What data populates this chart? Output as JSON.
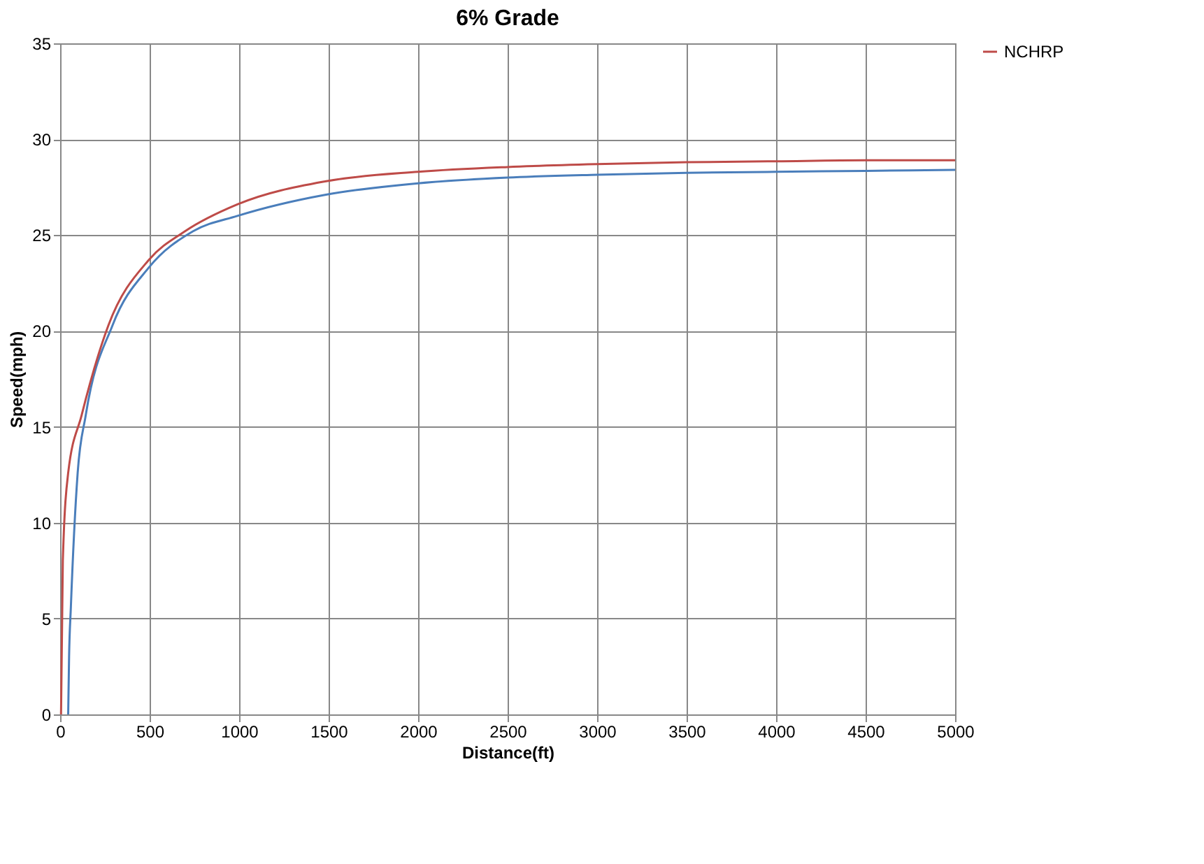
{
  "chart_data": {
    "type": "line",
    "title": "6% Grade",
    "xlabel": "Distance(ft)",
    "ylabel": "Speed(mph)",
    "xlim": [
      0,
      5000
    ],
    "xticks": [
      0,
      500,
      1000,
      1500,
      2000,
      2500,
      3000,
      3500,
      4000,
      4500,
      5000
    ],
    "ylim": [
      0,
      35
    ],
    "yticks": [
      0,
      5,
      10,
      15,
      20,
      25,
      30,
      35
    ],
    "grid": true,
    "legend": "right",
    "marker": "none",
    "line_style": "solid",
    "series": [
      {
        "color": "#4a7ebb",
        "x": [
          45,
          50,
          60,
          98,
          143,
          293,
          495,
          743,
          990,
          1480,
          2000,
          2500,
          3000,
          3500,
          4000,
          4500,
          5000
        ],
        "values": [
          0,
          3,
          5.6,
          12.6,
          15.6,
          20.3,
          23.3,
          25.2,
          26.0,
          27.1,
          27.7,
          28.0,
          28.15,
          28.25,
          28.3,
          28.35,
          28.4
        ]
      },
      {
        "name": "NCHRP",
        "color": "#be4b48",
        "x": [
          5,
          15,
          45,
          120,
          270,
          495,
          698,
          990,
          1480,
          2000,
          2500,
          3000,
          3500,
          4000,
          4500,
          5000
        ],
        "values": [
          0,
          8,
          12.6,
          15.6,
          20.3,
          23.7,
          25.2,
          26.6,
          27.8,
          28.3,
          28.55,
          28.7,
          28.8,
          28.85,
          28.9,
          28.9
        ]
      }
    ]
  }
}
